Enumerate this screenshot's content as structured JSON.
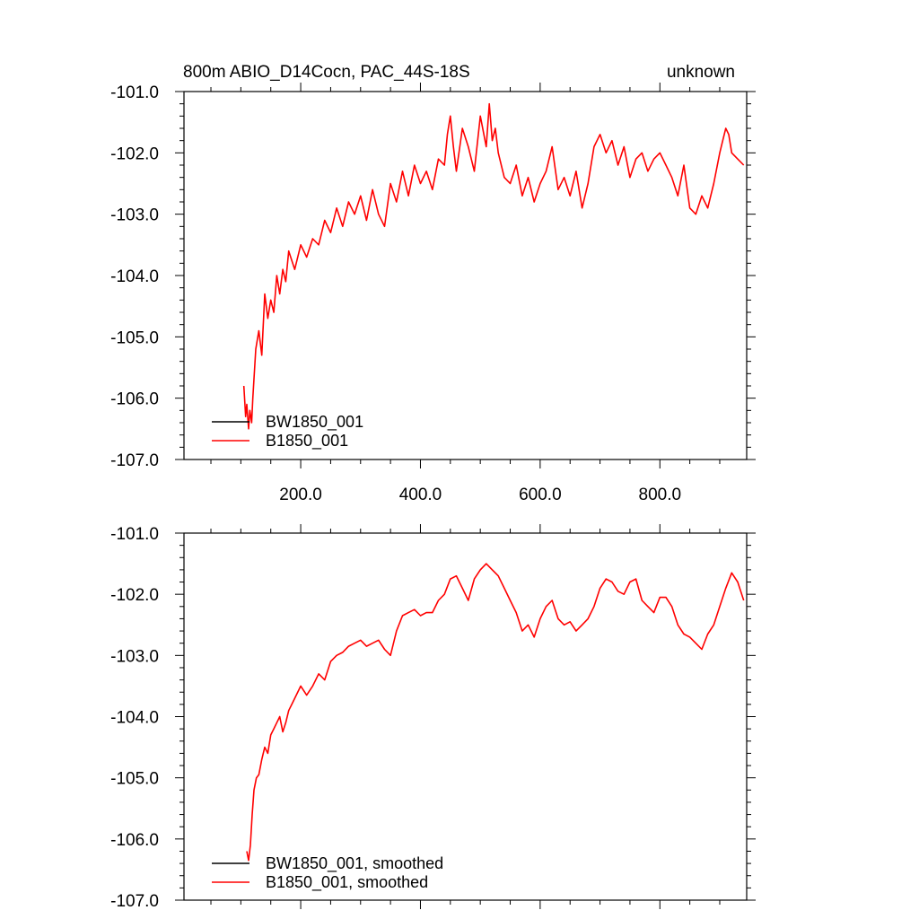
{
  "colors": {
    "background": "#ffffff",
    "axis": "#000000",
    "BW1850_001": "#000000",
    "B1850_001": "#ff0000"
  },
  "chart_data": [
    {
      "type": "line",
      "title": "800m ABIO_D14Cocn, PAC_44S-18S",
      "right_title": "unknown",
      "xlabel": "",
      "ylabel": "",
      "xlim": [
        5,
        945
      ],
      "ylim": [
        -107.0,
        -101.0
      ],
      "xticks": [
        200,
        400,
        600,
        800
      ],
      "xtick_labels": [
        "200.0",
        "400.0",
        "600.0",
        "800.0"
      ],
      "yticks": [
        -107,
        -106,
        -105,
        -104,
        -103,
        -102,
        -101
      ],
      "ytick_labels": [
        "-107.0",
        "-106.0",
        "-105.0",
        "-104.0",
        "-103.0",
        "-102.0",
        "-101.0"
      ],
      "grid": false,
      "legend_position": "bottom-left",
      "legend": [
        "BW1850_001",
        "B1850_001"
      ],
      "series": [
        {
          "name": "BW1850_001",
          "color": "#000000",
          "x": [],
          "y": []
        },
        {
          "name": "B1850_001",
          "color": "#ff0000",
          "x": [
            105,
            108,
            110,
            113,
            115,
            118,
            120,
            125,
            130,
            135,
            140,
            145,
            150,
            155,
            160,
            165,
            170,
            175,
            180,
            190,
            200,
            210,
            220,
            230,
            240,
            250,
            260,
            270,
            280,
            290,
            300,
            310,
            320,
            330,
            340,
            350,
            360,
            370,
            380,
            390,
            400,
            410,
            420,
            430,
            440,
            445,
            450,
            455,
            460,
            470,
            480,
            490,
            500,
            510,
            515,
            520,
            525,
            530,
            540,
            550,
            560,
            570,
            580,
            590,
            600,
            610,
            620,
            630,
            640,
            650,
            660,
            670,
            680,
            690,
            700,
            710,
            720,
            730,
            740,
            750,
            760,
            770,
            780,
            790,
            800,
            810,
            820,
            830,
            840,
            850,
            860,
            870,
            880,
            890,
            900,
            905,
            910,
            915,
            920,
            930,
            940
          ],
          "y": [
            -105.8,
            -106.3,
            -106.1,
            -106.5,
            -106.2,
            -106.4,
            -106.0,
            -105.2,
            -104.9,
            -105.3,
            -104.3,
            -104.7,
            -104.4,
            -104.6,
            -104.0,
            -104.3,
            -103.9,
            -104.1,
            -103.6,
            -103.9,
            -103.5,
            -103.7,
            -103.4,
            -103.5,
            -103.1,
            -103.3,
            -102.9,
            -103.2,
            -102.8,
            -103.0,
            -102.7,
            -103.1,
            -102.6,
            -103.0,
            -103.2,
            -102.5,
            -102.8,
            -102.3,
            -102.7,
            -102.2,
            -102.5,
            -102.3,
            -102.6,
            -102.1,
            -102.2,
            -101.7,
            -101.4,
            -101.9,
            -102.3,
            -101.6,
            -101.9,
            -102.3,
            -101.4,
            -101.9,
            -101.2,
            -101.8,
            -101.6,
            -102.0,
            -102.4,
            -102.5,
            -102.2,
            -102.7,
            -102.4,
            -102.8,
            -102.5,
            -102.3,
            -101.9,
            -102.6,
            -102.4,
            -102.7,
            -102.3,
            -102.9,
            -102.5,
            -101.9,
            -101.7,
            -102.0,
            -101.8,
            -102.2,
            -101.9,
            -102.4,
            -102.1,
            -102.0,
            -102.3,
            -102.1,
            -102.0,
            -102.2,
            -102.4,
            -102.7,
            -102.2,
            -102.9,
            -103.0,
            -102.7,
            -102.9,
            -102.5,
            -102.0,
            -101.8,
            -101.6,
            -101.7,
            -102.0,
            -102.1,
            -102.2
          ]
        }
      ]
    },
    {
      "type": "line",
      "title": "",
      "xlabel": "",
      "ylabel": "",
      "xlim": [
        5,
        945
      ],
      "ylim": [
        -107.0,
        -101.0
      ],
      "xticks": [
        200,
        400,
        600,
        800
      ],
      "xtick_labels": [],
      "yticks": [
        -107,
        -106,
        -105,
        -104,
        -103,
        -102,
        -101
      ],
      "ytick_labels": [
        "-107.0",
        "-106.0",
        "-105.0",
        "-104.0",
        "-103.0",
        "-102.0",
        "-101.0"
      ],
      "grid": false,
      "legend_position": "bottom-left",
      "legend": [
        "BW1850_001, smoothed",
        "B1850_001, smoothed"
      ],
      "series": [
        {
          "name": "BW1850_001, smoothed",
          "color": "#000000",
          "x": [],
          "y": []
        },
        {
          "name": "B1850_001, smoothed",
          "color": "#ff0000",
          "x": [
            110,
            113,
            116,
            119,
            122,
            126,
            130,
            135,
            140,
            145,
            150,
            155,
            160,
            165,
            170,
            175,
            180,
            185,
            190,
            200,
            210,
            220,
            230,
            240,
            250,
            260,
            270,
            280,
            290,
            300,
            310,
            320,
            330,
            340,
            350,
            360,
            370,
            380,
            390,
            400,
            410,
            420,
            430,
            440,
            450,
            460,
            470,
            480,
            490,
            500,
            510,
            520,
            530,
            540,
            550,
            560,
            570,
            580,
            590,
            600,
            610,
            620,
            630,
            640,
            650,
            660,
            670,
            680,
            690,
            700,
            710,
            720,
            730,
            740,
            750,
            760,
            770,
            780,
            790,
            800,
            810,
            820,
            830,
            840,
            850,
            860,
            870,
            880,
            890,
            900,
            910,
            920,
            930,
            940
          ],
          "y": [
            -106.2,
            -106.35,
            -106.1,
            -105.6,
            -105.2,
            -105.0,
            -104.95,
            -104.7,
            -104.5,
            -104.6,
            -104.3,
            -104.2,
            -104.1,
            -104.0,
            -104.25,
            -104.1,
            -103.9,
            -103.8,
            -103.7,
            -103.5,
            -103.65,
            -103.5,
            -103.3,
            -103.4,
            -103.1,
            -103.0,
            -102.95,
            -102.85,
            -102.8,
            -102.75,
            -102.85,
            -102.8,
            -102.75,
            -102.9,
            -103.0,
            -102.6,
            -102.35,
            -102.3,
            -102.25,
            -102.35,
            -102.3,
            -102.3,
            -102.1,
            -102.0,
            -101.75,
            -101.7,
            -101.9,
            -102.1,
            -101.75,
            -101.6,
            -101.5,
            -101.6,
            -101.7,
            -101.9,
            -102.1,
            -102.3,
            -102.6,
            -102.5,
            -102.7,
            -102.4,
            -102.2,
            -102.1,
            -102.4,
            -102.5,
            -102.45,
            -102.6,
            -102.5,
            -102.4,
            -102.2,
            -101.9,
            -101.75,
            -101.8,
            -101.95,
            -102.0,
            -101.8,
            -101.75,
            -102.1,
            -102.2,
            -102.3,
            -102.05,
            -102.05,
            -102.2,
            -102.5,
            -102.65,
            -102.7,
            -102.8,
            -102.9,
            -102.65,
            -102.5,
            -102.2,
            -101.9,
            -101.65,
            -101.8,
            -102.1
          ]
        }
      ]
    }
  ]
}
